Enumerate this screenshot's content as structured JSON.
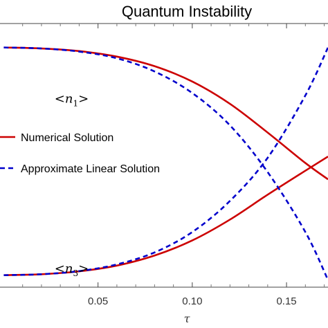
{
  "chart_data": {
    "type": "line",
    "title": "Quantum Instability",
    "xlabel": "τ",
    "ylabel": "",
    "xlim": [
      -0.002,
      0.172
    ],
    "ylim": [
      -0.05,
      1.05
    ],
    "xticks": [
      0.05,
      0.1,
      0.15
    ],
    "xtick_labels": [
      "0.05",
      "0.10",
      "0.15"
    ],
    "grid": false,
    "legend": {
      "placement": "left",
      "entries": [
        {
          "label": "Numerical Solution",
          "color": "#cc0000",
          "style": "solid"
        },
        {
          "label": "Approximate Linear Solution",
          "color": "#0000cc",
          "style": "dashed"
        }
      ]
    },
    "annotations": [
      {
        "base": "n",
        "sub": "1",
        "x": 0.036,
        "y": 0.72
      },
      {
        "base": "n",
        "sub": "3",
        "x": 0.036,
        "y": 0.01
      }
    ],
    "series": [
      {
        "name": "Numerical Solution",
        "curve": "n1",
        "color": "#cc0000",
        "style": "solid",
        "x": [
          0,
          0.02,
          0.04,
          0.06,
          0.08,
          0.1,
          0.12,
          0.14,
          0.16,
          0.172
        ],
        "y": [
          0.95,
          0.946,
          0.935,
          0.912,
          0.872,
          0.808,
          0.715,
          0.595,
          0.468,
          0.4
        ]
      },
      {
        "name": "Approximate Linear Solution",
        "curve": "n1",
        "color": "#0000cc",
        "style": "dashed",
        "x": [
          0,
          0.02,
          0.04,
          0.06,
          0.08,
          0.1,
          0.12,
          0.14,
          0.16,
          0.172
        ],
        "y": [
          0.95,
          0.946,
          0.933,
          0.905,
          0.85,
          0.76,
          0.625,
          0.43,
          0.18,
          -0.02
        ]
      },
      {
        "name": "Numerical Solution",
        "curve": "n3",
        "color": "#cc0000",
        "style": "solid",
        "x": [
          0,
          0.02,
          0.04,
          0.06,
          0.08,
          0.1,
          0.12,
          0.14,
          0.16,
          0.172
        ],
        "y": [
          0.0,
          0.004,
          0.016,
          0.04,
          0.082,
          0.145,
          0.232,
          0.336,
          0.436,
          0.495
        ]
      },
      {
        "name": "Approximate Linear Solution",
        "curve": "n3",
        "color": "#0000cc",
        "style": "dashed",
        "x": [
          0,
          0.02,
          0.04,
          0.06,
          0.08,
          0.1,
          0.12,
          0.14,
          0.16,
          0.172
        ],
        "y": [
          0.0,
          0.004,
          0.017,
          0.045,
          0.095,
          0.18,
          0.31,
          0.49,
          0.75,
          0.95
        ]
      }
    ]
  }
}
